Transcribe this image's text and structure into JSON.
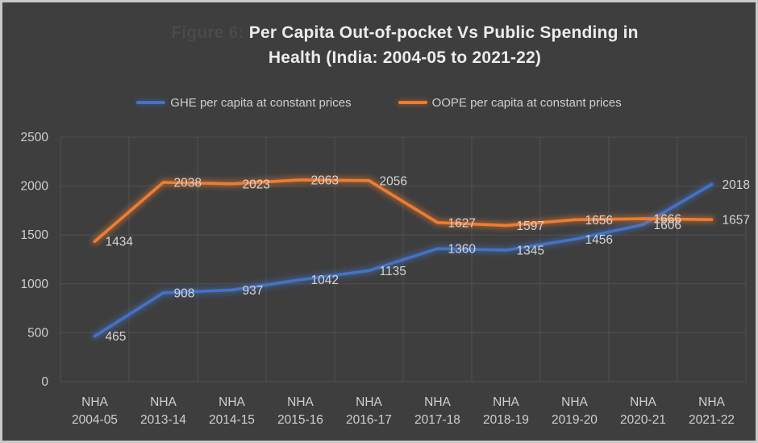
{
  "window": {
    "background_color": "#3E3E3E",
    "frame_border_color": "#C9C9C9"
  },
  "title": {
    "faint_prefix": "Figure 6:",
    "line1": "Per Capita Out-of-pocket Vs Public Spending in",
    "line2": "Health (India: 2004-05 to 2021-22)"
  },
  "chart_data": {
    "type": "line",
    "title": "Per Capita Out-of-pocket Vs Public Spending in Health (India: 2004-05 to 2021-22)",
    "categories": [
      "NHA 2004-05",
      "NHA 2013-14",
      "NHA 2014-15",
      "NHA 2015-16",
      "NHA 2016-17",
      "NHA 2017-18",
      "NHA 2018-19",
      "NHA 2019-20",
      "NHA 2020-21",
      "NHA 2021-22"
    ],
    "series": [
      {
        "name": "GHE per capita at constant prices",
        "color": "#4472C4",
        "values": [
          465,
          908,
          937,
          1042,
          1135,
          1360,
          1345,
          1456,
          1606,
          2018
        ]
      },
      {
        "name": "OOPE per capita at constant prices",
        "color": "#ED7D31",
        "values": [
          1434,
          2038,
          2023,
          2063,
          2056,
          1627,
          1597,
          1656,
          1666,
          1657
        ]
      }
    ],
    "yticks": [
      0,
      500,
      1000,
      1500,
      2000,
      2500
    ],
    "ylim": [
      0,
      2500
    ],
    "xlabel": "",
    "ylabel": "",
    "grid": true,
    "data_labels": true,
    "legend_position": "top",
    "text_color": "#CFCFCF",
    "grid_color": "#505050",
    "label_color": "#D4D4D4"
  }
}
